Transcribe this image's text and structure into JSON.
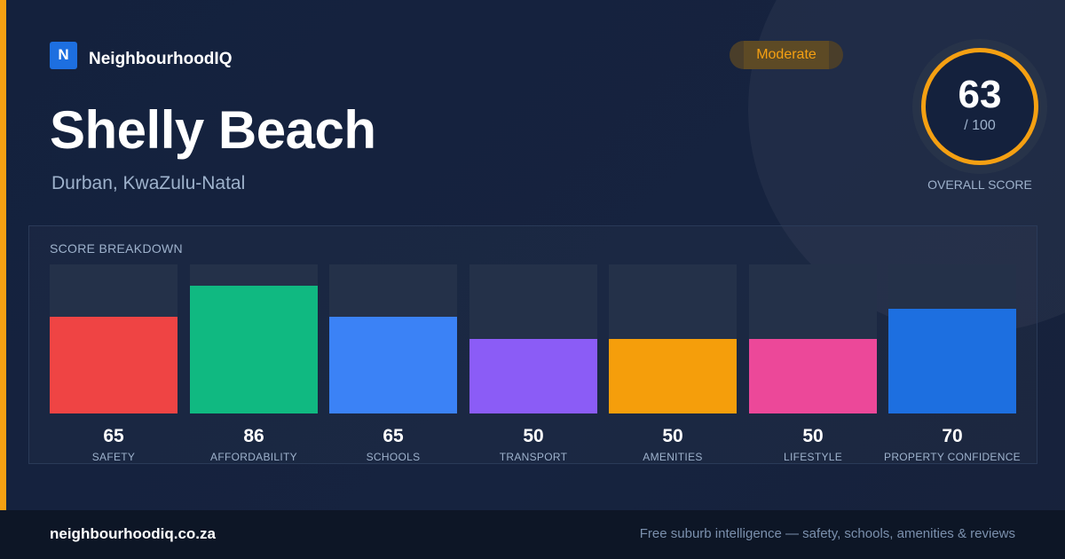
{
  "brand": {
    "logo_letter": "N",
    "name": "NeighbourhoodIQ",
    "logo_color": "#1d6fe0"
  },
  "suburb": {
    "name": "Shelly Beach",
    "location": "Durban, KwaZulu-Natal"
  },
  "badge": {
    "label": "Moderate",
    "color": "#f5a012"
  },
  "overall": {
    "score": "63",
    "max": "/ 100",
    "caption": "OVERALL SCORE",
    "ring_color": "#f5a012"
  },
  "breakdown": {
    "title": "SCORE BREAKDOWN",
    "scale_max": 100,
    "items": [
      {
        "label": "SAFETY",
        "value": 65,
        "color": "#ef4444"
      },
      {
        "label": "AFFORDABILITY",
        "value": 86,
        "color": "#10b981"
      },
      {
        "label": "SCHOOLS",
        "value": 65,
        "color": "#3b82f6"
      },
      {
        "label": "TRANSPORT",
        "value": 50,
        "color": "#8b5cf6"
      },
      {
        "label": "AMENITIES",
        "value": 50,
        "color": "#f59e0b"
      },
      {
        "label": "LIFESTYLE",
        "value": 50,
        "color": "#ec4899"
      },
      {
        "label": "PROPERTY CONFIDENCE",
        "value": 70,
        "color": "#1d6fe0"
      }
    ]
  },
  "footer": {
    "url": "neighbourhoodiq.co.za",
    "tagline": "Free suburb intelligence — safety, schools, amenities & reviews"
  },
  "accent_color": "#f5a012"
}
